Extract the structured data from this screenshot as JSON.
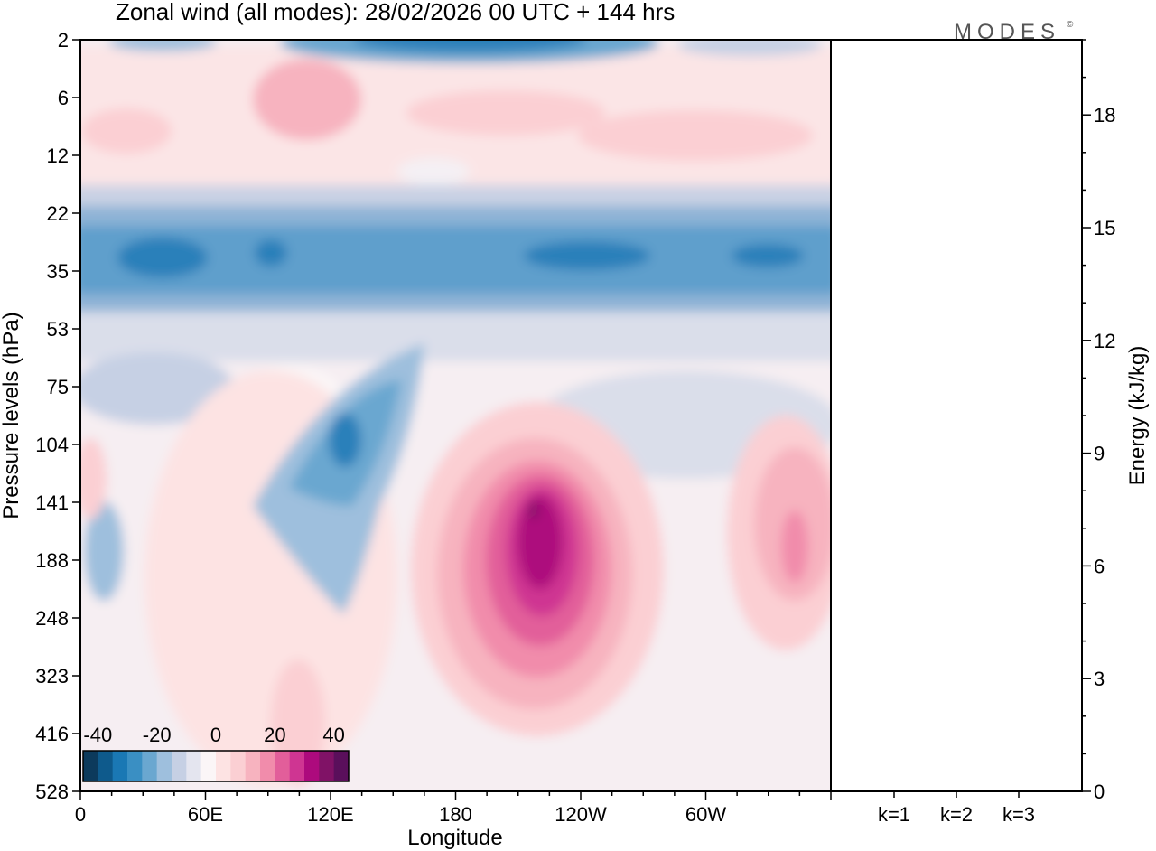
{
  "chart_data": [
    {
      "type": "heatmap",
      "title": "Zonal wind (all modes):  28/02/2026  00 UTC  + 144 hrs",
      "xlabel": "Longitude",
      "ylabel": "Pressure levels (hPa)",
      "x_ticks": [
        "0",
        "60E",
        "120E",
        "180",
        "120W",
        "60W"
      ],
      "x_tick_values": [
        0,
        60,
        120,
        180,
        240,
        300
      ],
      "xlim": [
        0,
        360
      ],
      "y_ticks": [
        "2",
        "6",
        "12",
        "22",
        "35",
        "53",
        "75",
        "104",
        "141",
        "188",
        "248",
        "323",
        "416",
        "528"
      ],
      "colorbar": {
        "ticks": [
          "-40",
          "-20",
          "0",
          "20",
          "40"
        ],
        "tick_values": [
          -40,
          -20,
          0,
          20,
          40
        ],
        "range": [
          -45,
          45
        ],
        "colors": [
          "#0c3a5c",
          "#0e5a8c",
          "#1a78b4",
          "#3a8fc3",
          "#6aa7d0",
          "#9ebfdd",
          "#c6d0e4",
          "#e4e5ef",
          "#fbf6f7",
          "#fde3e3",
          "#fbcfd3",
          "#f7b3bf",
          "#f18cab",
          "#e25e9a",
          "#cf3592",
          "#ad0a7d",
          "#801266",
          "#5a0f5b"
        ]
      },
      "features": [
        {
          "name": "stratospheric easterly band",
          "lon": [
            0,
            360
          ],
          "level": "22-53 hPa",
          "value": -25
        },
        {
          "name": "upper westerly band",
          "lon": [
            60,
            300
          ],
          "level": "6-12 hPa",
          "value": 12
        },
        {
          "name": "upper easterly jet core",
          "lon": [
            130,
            220
          ],
          "level": "2 hPa",
          "value": -30
        },
        {
          "name": "easterly tongue",
          "lon": [
            100,
            145
          ],
          "level": "75-188 hPa",
          "value": -22
        },
        {
          "name": "westerly jet core",
          "lon": [
            180,
            255
          ],
          "level": "104-323 hPa",
          "value": 38
        },
        {
          "name": "westerly maximum east",
          "lon": [
            315,
            360
          ],
          "level": "104-248 hPa",
          "value": 22
        }
      ]
    },
    {
      "type": "bar",
      "ylabel": "Energy (kJ/kg)",
      "categories": [
        "k=1",
        "k=2",
        "k=3"
      ],
      "values": [
        0.02,
        0.02,
        0.02
      ],
      "ylim": [
        0,
        20
      ],
      "y_ticks": [
        "0",
        "3",
        "6",
        "9",
        "12",
        "15",
        "18"
      ],
      "y_tick_values": [
        0,
        3,
        6,
        9,
        12,
        15,
        18
      ]
    }
  ],
  "logo": {
    "text": "MODES",
    "mark": "©"
  }
}
